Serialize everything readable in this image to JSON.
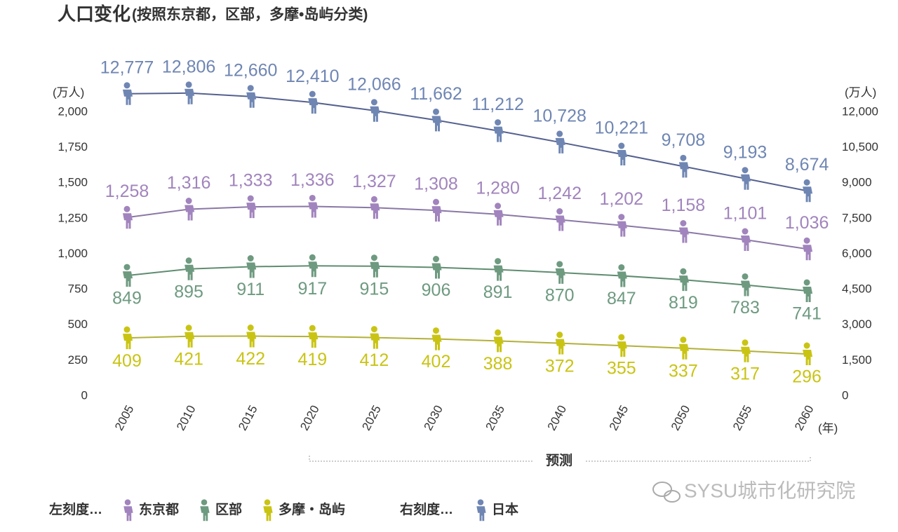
{
  "chart_data": {
    "type": "line",
    "title": "人口变化",
    "subtitle": "(按照东京都，区部，多摩•岛屿分类)",
    "y_label": "(万人)",
    "y2_label": "(万人)",
    "x_label": "(年)",
    "annotation": "预测",
    "watermark": "SYSU城市化研究院",
    "legend_left_label": "左刻度…",
    "legend_right_label": "右刻度…",
    "categories": [
      "2005",
      "2010",
      "2015",
      "2020",
      "2025",
      "2030",
      "2035",
      "2040",
      "2045",
      "2050",
      "2055",
      "2060"
    ],
    "ylim": [
      0,
      2000
    ],
    "yticks": [
      0,
      250,
      500,
      750,
      {
        "value": 1000,
        "label": "1,000"
      },
      {
        "value": 1250,
        "label": "1,250"
      },
      {
        "value": 1500,
        "label": "1,500"
      },
      {
        "value": 1750,
        "label": "1,750"
      },
      {
        "value": 2000,
        "label": "2,000"
      }
    ],
    "y2lim": [
      0,
      12000
    ],
    "y2ticks": [
      0,
      {
        "value": 1500,
        "label": "1,500"
      },
      {
        "value": 3000,
        "label": "3,000"
      },
      {
        "value": 4500,
        "label": "4,500"
      },
      {
        "value": 6000,
        "label": "6,000"
      },
      {
        "value": 7500,
        "label": "7,500"
      },
      {
        "value": 9000,
        "label": "9,000"
      },
      {
        "value": 10500,
        "label": "10,500"
      },
      {
        "value": 12000,
        "label": "12,000"
      }
    ],
    "series": [
      {
        "name": "日本",
        "axis": "y2",
        "color": "#6f86b3",
        "line_color": "#55618f",
        "label_pos": "above",
        "values": [
          12777,
          12806,
          12660,
          12410,
          12066,
          11662,
          11212,
          10728,
          10221,
          9708,
          9193,
          8674
        ],
        "value_labels": [
          "12,777",
          "12,806",
          "12,660",
          "12,410",
          "12,066",
          "11,662",
          "11,212",
          "10,728",
          "10,221",
          "9,708",
          "9,193",
          "8,674"
        ]
      },
      {
        "name": "东京都",
        "axis": "y",
        "color": "#a184bd",
        "line_color": "#8a78a6",
        "label_pos": "above",
        "values": [
          1258,
          1316,
          1333,
          1336,
          1327,
          1308,
          1280,
          1242,
          1202,
          1158,
          1101,
          1036
        ],
        "value_labels": [
          "1,258",
          "1,316",
          "1,333",
          "1,336",
          "1,327",
          "1,308",
          "1,280",
          "1,242",
          "1,202",
          "1,158",
          "1,101",
          "1,036"
        ]
      },
      {
        "name": "区部",
        "axis": "y",
        "color": "#6e9a80",
        "line_color": "#5f8c70",
        "label_pos": "below",
        "values": [
          849,
          895,
          911,
          917,
          915,
          906,
          891,
          870,
          847,
          819,
          783,
          741
        ]
      },
      {
        "name": "多摩・岛屿",
        "axis": "y",
        "color": "#c9c414",
        "line_color": "#b3b03a",
        "label_pos": "below",
        "values": [
          409,
          421,
          422,
          419,
          412,
          402,
          388,
          372,
          355,
          337,
          317,
          296
        ]
      }
    ]
  }
}
